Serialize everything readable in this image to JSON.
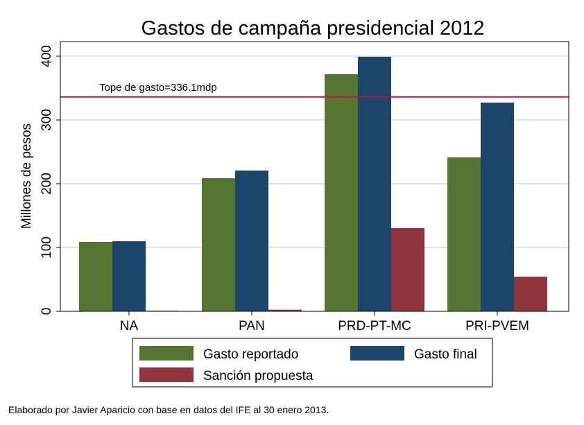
{
  "chart_data": {
    "type": "bar",
    "title": "Gastos de campaña presidencial 2012",
    "xlabel": "",
    "ylabel": "Millones de pesos",
    "ylim": [
      0,
      400
    ],
    "yticks": [
      0,
      100,
      200,
      300,
      400
    ],
    "grid": true,
    "categories": [
      "NA",
      "PAN",
      "PRD-PT-MC",
      "PRI-PVEM"
    ],
    "series": [
      {
        "name": "Gasto reportado",
        "color": "#557630",
        "values": [
          108.7,
          208.7,
          371.7,
          241.3
        ]
      },
      {
        "name": "Gasto final",
        "color": "#1b456b",
        "values": [
          109.8,
          220.7,
          399.0,
          327.2
        ]
      },
      {
        "name": "Sanción propuesta",
        "color": "#90353b",
        "values": [
          1.0,
          2.5,
          130.4,
          54.3
        ]
      }
    ],
    "reference_line": {
      "value": 336.1,
      "label": "Tope de gasto=336.1mdp",
      "color": "#c0124a"
    },
    "legend_placement": "bottom",
    "note": "Elaborado por Javier Aparicio con base en datos del IFE al 30 enero 2013."
  }
}
